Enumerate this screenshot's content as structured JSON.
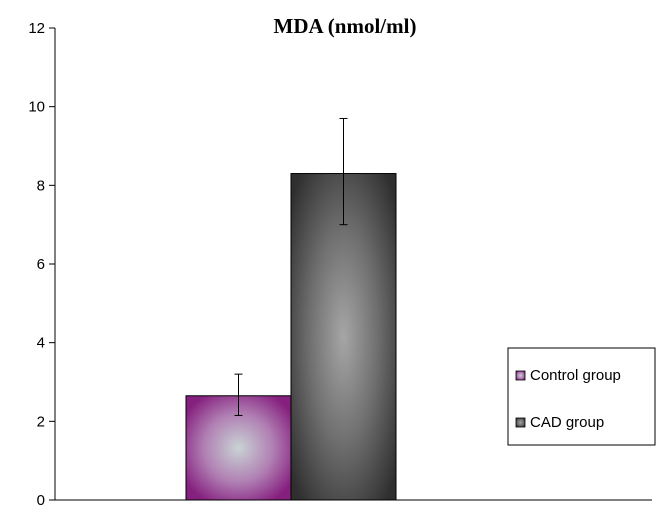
{
  "chart_data": {
    "type": "bar",
    "title": "MDA (nmol/ml)",
    "xlabel": "",
    "ylabel": "",
    "ylim": [
      0,
      12
    ],
    "yticks": [
      0,
      2,
      4,
      6,
      8,
      10,
      12
    ],
    "grid": false,
    "legend_position": "right",
    "series": [
      {
        "name": "Control group",
        "value": 2.65,
        "error_low": 2.15,
        "error_high": 3.2,
        "color": "#8b2a8f"
      },
      {
        "name": "CAD group",
        "value": 8.3,
        "error_low": 7.0,
        "error_high": 9.7,
        "color": "#3c3c3c"
      }
    ]
  }
}
